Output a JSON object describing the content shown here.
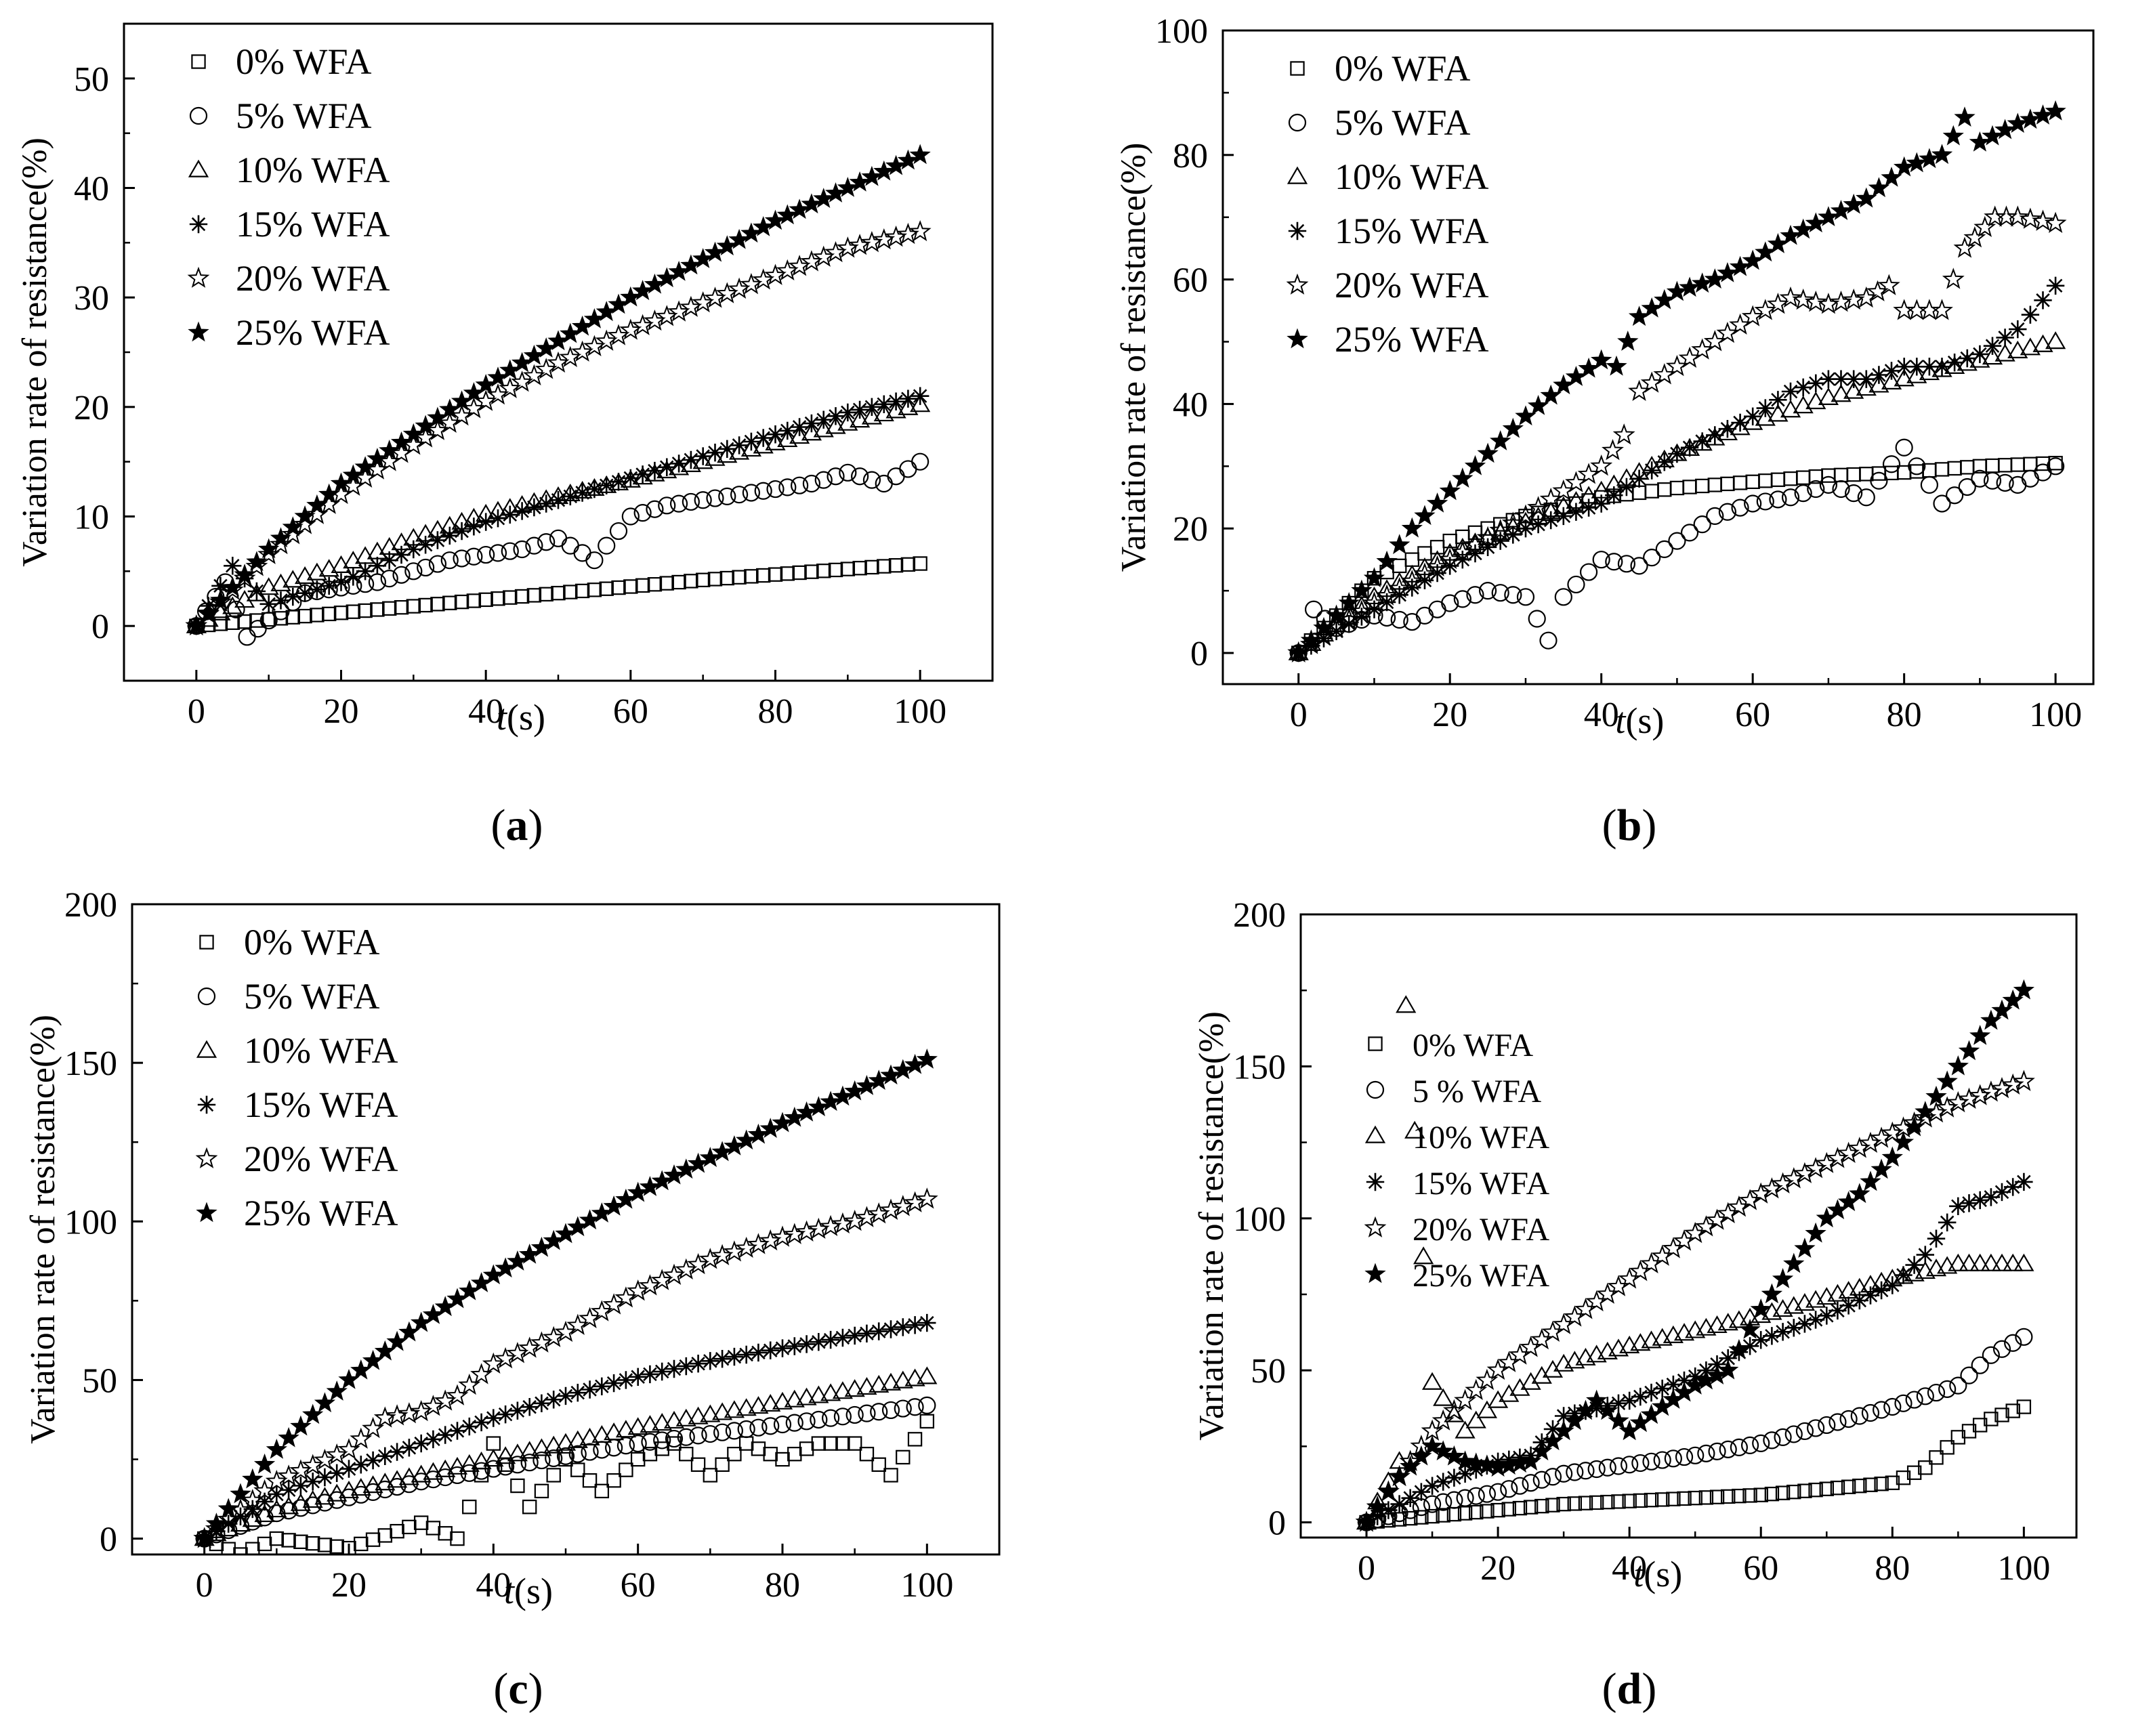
{
  "chart_data": [
    {
      "type": "scatter",
      "panel_label": "a",
      "xlabel": "t(s)",
      "ylabel": "Variation rate of resistance(%)",
      "xlim": [
        -10,
        110
      ],
      "ylim": [
        -5,
        55
      ],
      "xticks": [
        0,
        20,
        40,
        60,
        80,
        100
      ],
      "yticks": [
        0,
        10,
        20,
        30,
        40,
        50
      ],
      "legend_position": "top-left",
      "series": [
        {
          "name": "0%  WFA",
          "marker": "square",
          "x": [
            0,
            10,
            20,
            30,
            40,
            50,
            60,
            70,
            80,
            90,
            100
          ],
          "values": [
            0,
            0.6,
            1.2,
            1.8,
            2.4,
            3.0,
            3.6,
            4.2,
            4.7,
            5.2,
            5.7
          ]
        },
        {
          "name": "5%  WFA",
          "marker": "circle",
          "x": [
            0,
            4,
            7,
            10,
            15,
            20,
            25,
            30,
            35,
            40,
            45,
            50,
            55,
            60,
            65,
            70,
            75,
            80,
            85,
            90,
            95,
            100
          ],
          "values": [
            0,
            4,
            -1,
            0.5,
            3,
            3.5,
            4,
            5,
            6,
            6.5,
            7,
            8,
            6,
            10,
            11,
            11.5,
            12,
            12.5,
            13,
            14,
            13,
            15
          ]
        },
        {
          "name": "10% WFA",
          "marker": "triangle",
          "x": [
            0,
            10,
            20,
            30,
            40,
            50,
            60,
            70,
            80,
            90,
            100
          ],
          "values": [
            0,
            3.5,
            5.5,
            8,
            10.2,
            11.8,
            13.3,
            15,
            16.7,
            18.5,
            20.2
          ]
        },
        {
          "name": "15% WFA",
          "marker": "asterisk",
          "x": [
            0,
            5,
            10,
            20,
            30,
            40,
            50,
            60,
            70,
            80,
            90,
            100
          ],
          "values": [
            0,
            5.5,
            2,
            4,
            7,
            9.5,
            11.5,
            13.5,
            15.5,
            17.5,
            19.5,
            21
          ]
        },
        {
          "name": "20% WFA",
          "marker": "star-open",
          "x": [
            0,
            10,
            20,
            30,
            40,
            50,
            60,
            70,
            80,
            90,
            100
          ],
          "values": [
            0,
            6.5,
            12,
            16.5,
            20.5,
            24,
            27,
            29.5,
            32,
            34.5,
            36
          ]
        },
        {
          "name": "25% WFA",
          "marker": "star-filled",
          "x": [
            0,
            10,
            20,
            30,
            40,
            50,
            60,
            70,
            80,
            90,
            100
          ],
          "values": [
            0,
            7,
            13,
            17.5,
            22,
            26,
            30,
            33.5,
            37,
            40,
            43
          ]
        }
      ]
    },
    {
      "type": "scatter",
      "panel_label": "b",
      "xlabel": "t(s)",
      "ylabel": "Variation rate of resistance(%)",
      "xlim": [
        -10,
        105
      ],
      "ylim": [
        -5,
        100
      ],
      "xticks": [
        0,
        20,
        40,
        60,
        80,
        100
      ],
      "yticks": [
        0,
        20,
        40,
        60,
        80,
        100
      ],
      "legend_position": "top-left",
      "series": [
        {
          "name": "0%  WFA",
          "marker": "square",
          "x": [
            0,
            10,
            20,
            30,
            40,
            50,
            60,
            70,
            80,
            90,
            100
          ],
          "values": [
            0,
            12,
            18,
            22,
            25,
            26.5,
            27.5,
            28.5,
            29,
            30,
            30.5
          ]
        },
        {
          "name": "5%  WFA",
          "marker": "circle",
          "x": [
            0,
            2,
            5,
            10,
            15,
            20,
            25,
            30,
            33,
            35,
            40,
            45,
            50,
            55,
            60,
            65,
            70,
            75,
            80,
            85,
            90,
            95,
            100
          ],
          "values": [
            0,
            7,
            4,
            6,
            5,
            8,
            10,
            9,
            2,
            9,
            15,
            14,
            18,
            22,
            24,
            25,
            27,
            25,
            33,
            24,
            28,
            27,
            30
          ]
        },
        {
          "name": "10% WFA",
          "marker": "triangle",
          "x": [
            0,
            10,
            20,
            30,
            40,
            50,
            60,
            70,
            80,
            90,
            100
          ],
          "values": [
            0,
            9,
            16,
            21,
            26,
            32,
            37,
            41,
            44,
            47,
            50
          ]
        },
        {
          "name": "15% WFA",
          "marker": "asterisk",
          "x": [
            0,
            10,
            20,
            30,
            40,
            45,
            50,
            55,
            60,
            65,
            70,
            75,
            80,
            85,
            90,
            95,
            100
          ],
          "values": [
            0,
            7,
            14,
            20,
            24,
            28,
            32,
            35,
            38,
            42,
            44,
            44,
            46,
            46,
            48,
            52,
            59
          ]
        },
        {
          "name": "20% WFA",
          "marker": "star-open",
          "x": [
            0,
            10,
            20,
            30,
            40,
            43,
            45,
            50,
            55,
            60,
            65,
            70,
            75,
            78,
            80,
            85,
            88,
            92,
            95,
            100
          ],
          "values": [
            0,
            8,
            15,
            22,
            30,
            35,
            42,
            46,
            50,
            54,
            57,
            56,
            57,
            59,
            55,
            55,
            65,
            70,
            70,
            69
          ]
        },
        {
          "name": "25% WFA",
          "marker": "star-filled",
          "x": [
            0,
            10,
            15,
            20,
            25,
            30,
            35,
            40,
            42,
            45,
            50,
            55,
            60,
            65,
            70,
            75,
            80,
            85,
            88,
            90,
            95,
            100
          ],
          "values": [
            0,
            12,
            20,
            26,
            32,
            38,
            43,
            47,
            46,
            54,
            58,
            60,
            63,
            67,
            70,
            73,
            78,
            80,
            86,
            82,
            85,
            87
          ]
        }
      ]
    },
    {
      "type": "scatter",
      "panel_label": "c",
      "xlabel": "t(s)",
      "ylabel": "Variation rate of resistance(%)",
      "xlim": [
        -10,
        110
      ],
      "ylim": [
        -5,
        200
      ],
      "xticks": [
        0,
        20,
        40,
        60,
        80,
        100
      ],
      "yticks": [
        0,
        50,
        100,
        150,
        200
      ],
      "legend_position": "top-left",
      "series": [
        {
          "name": "0%  WFA",
          "marker": "square",
          "x": [
            0,
            5,
            10,
            20,
            30,
            35,
            40,
            45,
            50,
            55,
            60,
            65,
            70,
            75,
            80,
            85,
            90,
            95,
            100
          ],
          "values": [
            0,
            -5,
            0,
            -3,
            5,
            0,
            30,
            10,
            25,
            15,
            25,
            30,
            20,
            30,
            25,
            30,
            30,
            20,
            37
          ]
        },
        {
          "name": "5%  WFA",
          "marker": "circle",
          "x": [
            0,
            10,
            20,
            30,
            40,
            50,
            60,
            70,
            80,
            90,
            100
          ],
          "values": [
            0,
            8,
            13,
            18,
            22,
            26,
            30,
            33,
            36,
            39,
            42
          ]
        },
        {
          "name": "10% WFA",
          "marker": "triangle",
          "x": [
            0,
            10,
            20,
            30,
            40,
            50,
            60,
            70,
            80,
            90,
            100
          ],
          "values": [
            0,
            9,
            15,
            20,
            25,
            30,
            35,
            39,
            43,
            47,
            51
          ]
        },
        {
          "name": "15% WFA",
          "marker": "asterisk",
          "x": [
            0,
            10,
            20,
            30,
            40,
            50,
            60,
            70,
            80,
            90,
            100
          ],
          "values": [
            0,
            14,
            22,
            30,
            38,
            45,
            51,
            56,
            60,
            64,
            68
          ]
        },
        {
          "name": "20% WFA",
          "marker": "star-open",
          "x": [
            0,
            10,
            20,
            25,
            30,
            35,
            40,
            50,
            60,
            70,
            80,
            90,
            100
          ],
          "values": [
            0,
            18,
            28,
            38,
            40,
            45,
            55,
            65,
            78,
            88,
            95,
            100,
            107
          ]
        },
        {
          "name": "25% WFA",
          "marker": "star-filled",
          "x": [
            0,
            10,
            20,
            30,
            40,
            50,
            60,
            70,
            80,
            90,
            100
          ],
          "values": [
            0,
            28,
            50,
            68,
            83,
            96,
            109,
            120,
            131,
            141,
            151
          ]
        }
      ]
    },
    {
      "type": "scatter",
      "panel_label": "d",
      "xlabel": "t(s)",
      "ylabel": "Variation rate of resistance(%)",
      "xlim": [
        -10,
        108
      ],
      "ylim": [
        -5,
        200
      ],
      "xticks": [
        0,
        20,
        40,
        60,
        80,
        100
      ],
      "yticks": [
        0,
        50,
        100,
        150,
        200
      ],
      "legend_position": "top-left",
      "series": [
        {
          "name": "0%  WFA",
          "marker": "square",
          "x": [
            0,
            10,
            20,
            30,
            40,
            50,
            60,
            70,
            80,
            85,
            90,
            95,
            100
          ],
          "values": [
            0,
            2,
            4,
            6,
            7,
            8,
            9,
            11,
            13,
            18,
            28,
            34,
            38
          ]
        },
        {
          "name": "5 % WFA",
          "marker": "circle",
          "x": [
            0,
            10,
            20,
            30,
            40,
            50,
            60,
            70,
            80,
            90,
            95,
            100
          ],
          "values": [
            0,
            6,
            10,
            16,
            19,
            22,
            26,
            32,
            38,
            45,
            55,
            61
          ]
        },
        {
          "name": "10% WFA",
          "marker": "triangle",
          "x": [
            0,
            5,
            6,
            10,
            15,
            20,
            30,
            40,
            50,
            60,
            70,
            80,
            90,
            100
          ],
          "values": [
            0,
            20,
            170,
            46,
            30,
            40,
            52,
            58,
            63,
            68,
            74,
            80,
            85,
            85
          ]
        },
        {
          "name": "15% WFA",
          "marker": "asterisk",
          "x": [
            0,
            10,
            20,
            25,
            30,
            40,
            50,
            60,
            70,
            80,
            85,
            90,
            95,
            100
          ],
          "values": [
            0,
            12,
            20,
            22,
            35,
            40,
            48,
            60,
            68,
            78,
            88,
            104,
            107,
            112
          ]
        },
        {
          "name": "20% WFA",
          "marker": "star-open",
          "x": [
            0,
            10,
            20,
            30,
            40,
            50,
            60,
            70,
            80,
            90,
            100
          ],
          "values": [
            0,
            30,
            50,
            65,
            80,
            95,
            108,
            118,
            128,
            138,
            145
          ]
        },
        {
          "name": "25% WFA",
          "marker": "star-filled",
          "x": [
            0,
            5,
            10,
            15,
            20,
            25,
            30,
            35,
            40,
            45,
            50,
            55,
            60,
            65,
            70,
            75,
            80,
            85,
            90,
            95,
            100
          ],
          "values": [
            0,
            15,
            25,
            20,
            18,
            20,
            30,
            40,
            30,
            38,
            45,
            50,
            70,
            85,
            100,
            108,
            120,
            135,
            150,
            165,
            175
          ]
        }
      ]
    }
  ]
}
